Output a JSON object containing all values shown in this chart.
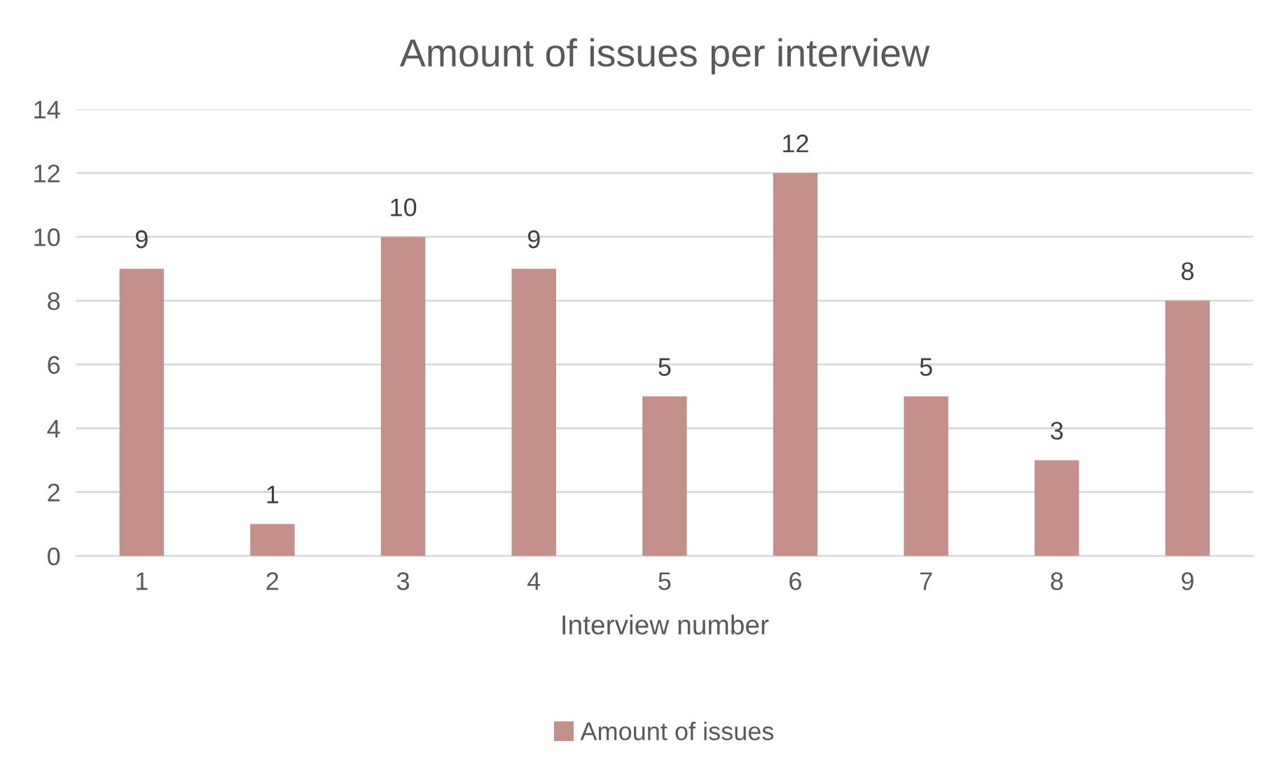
{
  "chart_data": {
    "type": "bar",
    "title": "Amount of issues per interview",
    "xlabel": "Interview number",
    "categories": [
      "1",
      "2",
      "3",
      "4",
      "5",
      "6",
      "7",
      "8",
      "9"
    ],
    "series": [
      {
        "name": "Amount of issues",
        "color": "#c4908c",
        "values": [
          9,
          1,
          10,
          9,
          5,
          12,
          5,
          3,
          8
        ]
      }
    ],
    "ylim": [
      0,
      14
    ],
    "yticks": [
      0,
      2,
      4,
      6,
      8,
      10,
      12,
      14
    ],
    "grid": "y",
    "legend": "bottom",
    "data_labels": true
  }
}
